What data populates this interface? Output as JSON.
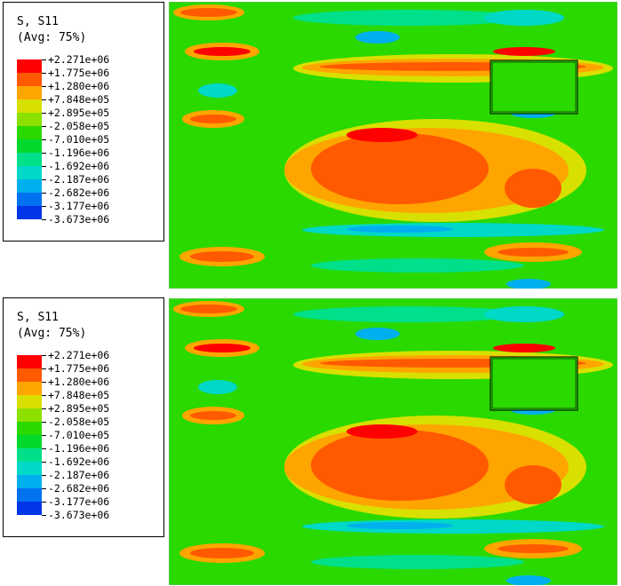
{
  "panels": [
    {
      "legend": {
        "title_line1": "S, S11",
        "title_line2": "(Avg: 75%)",
        "values": [
          "+2.271e+06",
          "+1.775e+06",
          "+1.280e+06",
          "+7.848e+05",
          "+2.895e+05",
          "-2.058e+05",
          "-7.010e+05",
          "-1.196e+06",
          "-1.692e+06",
          "-2.187e+06",
          "-2.682e+06",
          "-3.177e+06",
          "-3.673e+06"
        ]
      }
    },
    {
      "legend": {
        "title_line1": "S, S11",
        "title_line2": "(Avg: 75%)",
        "values": [
          "+2.271e+06",
          "+1.775e+06",
          "+1.280e+06",
          "+7.848e+05",
          "+2.895e+05",
          "-2.058e+05",
          "-7.010e+05",
          "-1.196e+06",
          "-1.692e+06",
          "-2.187e+06",
          "-2.682e+06",
          "-3.177e+06",
          "-3.673e+06"
        ]
      }
    }
  ],
  "colors": {
    "bands": [
      "#ff0000",
      "#ff5a00",
      "#ffa500",
      "#d8e000",
      "#8be000",
      "#2ad900",
      "#00d92c",
      "#00e08a",
      "#00d8c8",
      "#00b0ee",
      "#0072f0",
      "#0036e8"
    ],
    "field_base": "#2ad900"
  }
}
